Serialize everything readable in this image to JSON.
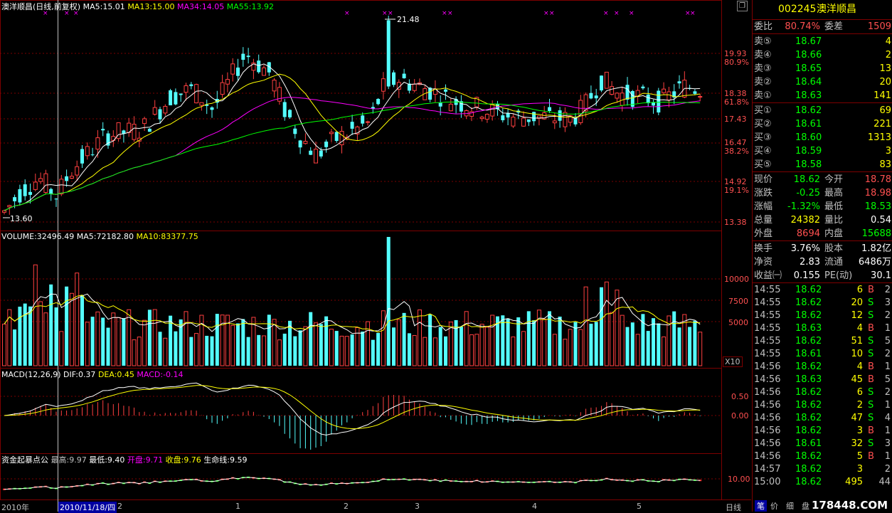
{
  "colors": {
    "up": "#ff4040",
    "down": "#54ffff",
    "ma5": "#ffffff",
    "ma13": "#ffff00",
    "ma34": "#ff00ff",
    "ma55": "#00ff00",
    "grid": "#7d0000"
  },
  "main": {
    "header": {
      "title": "澳洋顺昌(日线,前复权)",
      "ma5": "MA5:15.01",
      "ma13": "MA13:15.00",
      "ma34": "MA34:14.05",
      "ma55": "MA55:13.92"
    },
    "price_axis": [
      "19.93",
      "80.9%",
      "18.38",
      "61.8%",
      "17.43",
      "16.47",
      "38.2%",
      "14.92",
      "19.1%",
      "13.38"
    ],
    "high_label": "21.48",
    "low_label": "13.60"
  },
  "volume": {
    "header": {
      "label": "VOLUME:32496.49",
      "ma5": "MA5:72182.80",
      "ma10": "MA10:83377.75"
    },
    "axis": [
      "10000",
      "7500",
      "5000"
    ],
    "scale_label": "X10"
  },
  "macd": {
    "header": {
      "label": "MACD(12,26,9)",
      "dif": "DIF:0.37",
      "dea": "DEA:0.45",
      "macd": "MACD:-0.14"
    },
    "axis": [
      "0.50",
      "0.00"
    ]
  },
  "fund": {
    "header": {
      "label": "资金起暴点公",
      "high": "最高:9.97",
      "low": "最低:9.40",
      "open": "开盘:9.71",
      "close": "收盘:9.76",
      "life": "生命线:9.59"
    },
    "axis": [
      "10.00"
    ]
  },
  "xaxis": {
    "year": "2010年",
    "cursor_date": "2010/11/18/四",
    "months": [
      "2",
      "1",
      "2",
      "3",
      "4",
      "5"
    ],
    "period": "日线"
  },
  "quote": {
    "code": "002245",
    "name": "澳洋顺昌",
    "weibi_label": "委比",
    "weibi": "80.74%",
    "weicha_label": "委差",
    "weicha": "1509",
    "sell": [
      {
        "label": "卖⑤",
        "price": "18.67",
        "vol": "4"
      },
      {
        "label": "卖④",
        "price": "18.66",
        "vol": "2"
      },
      {
        "label": "卖③",
        "price": "18.65",
        "vol": "13"
      },
      {
        "label": "卖②",
        "price": "18.64",
        "vol": "20"
      },
      {
        "label": "卖①",
        "price": "18.63",
        "vol": "141"
      }
    ],
    "buy": [
      {
        "label": "买①",
        "price": "18.62",
        "vol": "69"
      },
      {
        "label": "买②",
        "price": "18.61",
        "vol": "221"
      },
      {
        "label": "买③",
        "price": "18.60",
        "vol": "1313"
      },
      {
        "label": "买④",
        "price": "18.59",
        "vol": "3"
      },
      {
        "label": "买⑤",
        "price": "18.58",
        "vol": "83"
      }
    ],
    "stats": [
      {
        "l1": "现价",
        "v1": "18.62",
        "c1": "g",
        "l2": "今开",
        "v2": "18.78",
        "c2": "r"
      },
      {
        "l1": "涨跌",
        "v1": "-0.25",
        "c1": "g",
        "l2": "最高",
        "v2": "18.98",
        "c2": "r"
      },
      {
        "l1": "涨幅",
        "v1": "-1.32%",
        "c1": "g",
        "l2": "最低",
        "v2": "18.53",
        "c2": "g"
      },
      {
        "l1": "总量",
        "v1": "24382",
        "c1": "y",
        "l2": "量比",
        "v2": "0.54",
        "c2": "w"
      },
      {
        "l1": "外盘",
        "v1": "8694",
        "c1": "r",
        "l2": "内盘",
        "v2": "15688",
        "c2": "g"
      }
    ],
    "stats2": [
      {
        "l1": "换手",
        "v1": "3.76%",
        "l2": "股本",
        "v2": "1.82亿"
      },
      {
        "l1": "净资",
        "v1": "2.83",
        "l2": "流通",
        "v2": "6486万"
      },
      {
        "l1": "收益㈠",
        "v1": "0.155",
        "l2": "PE(动)",
        "v2": "30.1"
      }
    ],
    "ticks": [
      {
        "t": "14:55",
        "p": "18.62",
        "pc": "g",
        "v": "6",
        "bs": "B",
        "n": "2"
      },
      {
        "t": "14:55",
        "p": "18.62",
        "pc": "g",
        "v": "20",
        "bs": "S",
        "n": "3"
      },
      {
        "t": "14:55",
        "p": "18.62",
        "pc": "g",
        "v": "12",
        "bs": "S",
        "n": "2"
      },
      {
        "t": "14:55",
        "p": "18.63",
        "pc": "g",
        "v": "4",
        "bs": "B",
        "n": "1"
      },
      {
        "t": "14:55",
        "p": "18.62",
        "pc": "g",
        "v": "51",
        "bs": "S",
        "n": "5"
      },
      {
        "t": "14:55",
        "p": "18.61",
        "pc": "g",
        "v": "10",
        "bs": "S",
        "n": "2"
      },
      {
        "t": "14:56",
        "p": "18.62",
        "pc": "g",
        "v": "4",
        "bs": "B",
        "n": "1"
      },
      {
        "t": "14:56",
        "p": "18.63",
        "pc": "g",
        "v": "45",
        "bs": "B",
        "n": "5"
      },
      {
        "t": "14:56",
        "p": "18.62",
        "pc": "g",
        "v": "6",
        "bs": "S",
        "n": "2"
      },
      {
        "t": "14:56",
        "p": "18.62",
        "pc": "g",
        "v": "2",
        "bs": "S",
        "n": "1"
      },
      {
        "t": "14:56",
        "p": "18.62",
        "pc": "g",
        "v": "47",
        "bs": "S",
        "n": "4"
      },
      {
        "t": "14:56",
        "p": "18.62",
        "pc": "g",
        "v": "3",
        "bs": "B",
        "n": "1"
      },
      {
        "t": "14:56",
        "p": "18.61",
        "pc": "g",
        "v": "32",
        "bs": "S",
        "n": "3"
      },
      {
        "t": "14:56",
        "p": "18.62",
        "pc": "g",
        "v": "5",
        "bs": "B",
        "n": "1"
      },
      {
        "t": "14:57",
        "p": "18.62",
        "pc": "g",
        "v": "3",
        "bs": "",
        "n": "2"
      },
      {
        "t": "15:00",
        "p": "18.62",
        "pc": "g",
        "v": "495",
        "bs": "",
        "n": "44"
      }
    ],
    "tabs": [
      "笔",
      "价",
      "细",
      "盘"
    ],
    "watermark": "178448.COM"
  }
}
